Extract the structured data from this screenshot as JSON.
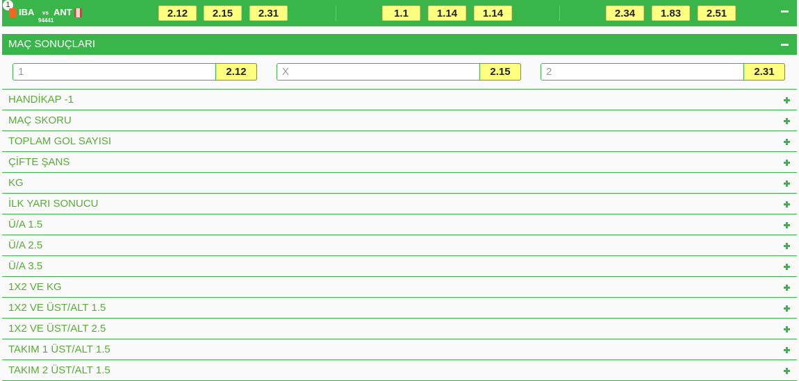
{
  "match": {
    "number": "1",
    "home": "IBA",
    "vs": "vs",
    "away": "ANT",
    "code": "94441",
    "odds": [
      [
        "2.12",
        "2.15",
        "2.31"
      ],
      [
        "1.1",
        "1.14",
        "1.14"
      ],
      [
        "2.34",
        "1.83",
        "2.51"
      ]
    ]
  },
  "section": {
    "title": "MAÇ SONUÇLARI",
    "options": [
      {
        "label": "1",
        "odd": "2.12"
      },
      {
        "label": "X",
        "odd": "2.15"
      },
      {
        "label": "2",
        "odd": "2.31"
      }
    ]
  },
  "markets": [
    "HANDİKAP -1",
    "MAÇ SKORU",
    "TOPLAM GOL SAYISI",
    "ÇİFTE ŞANS",
    "KG",
    "İLK YARI SONUCU",
    "Ü/A 1.5",
    "Ü/A 2.5",
    "Ü/A 3.5",
    "1X2 VE KG",
    "1X2 VE ÜST/ALT 1.5",
    "1X2 VE ÜST/ALT 2.5",
    "TAKIM 1 ÜST/ALT 1.5",
    "TAKIM 2 ÜST/ALT 1.5"
  ],
  "colors": {
    "accent": "#39b54a",
    "odd_bg": "#ffff80"
  }
}
